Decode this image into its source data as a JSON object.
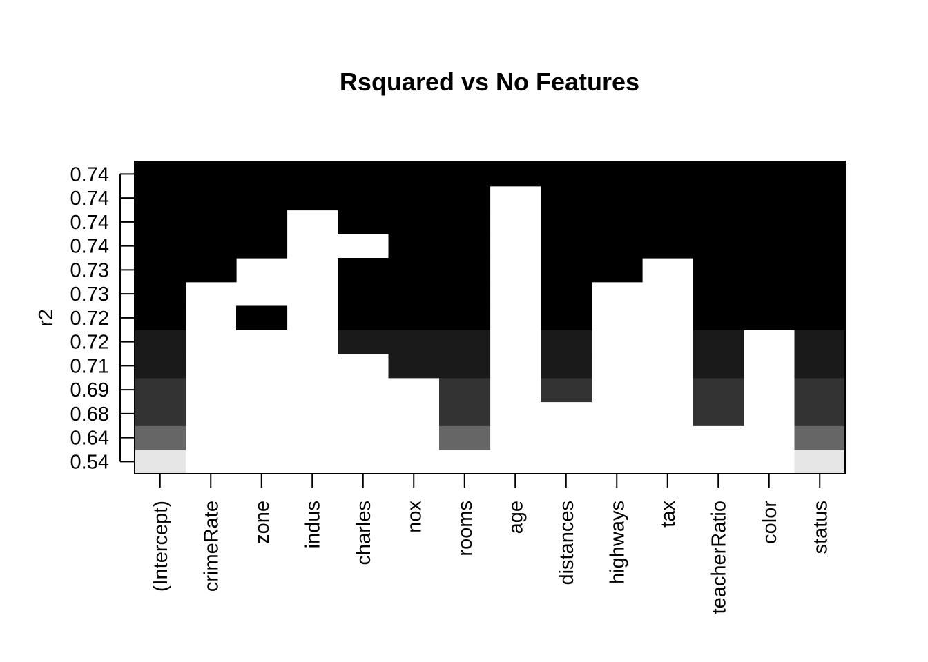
{
  "chart_data": {
    "type": "heatmap",
    "title": "Rsquared vs No Features",
    "ylabel": "r2",
    "xlabel": "",
    "features": [
      "(Intercept)",
      "crimeRate",
      "zone",
      "indus",
      "charles",
      "nox",
      "rooms",
      "age",
      "distances",
      "highways",
      "tax",
      "teacherRatio",
      "color",
      "status"
    ],
    "rows": [
      {
        "label": "0.54",
        "shade": "#E6E6E6",
        "included": [
          true,
          false,
          false,
          false,
          false,
          false,
          false,
          false,
          false,
          false,
          false,
          false,
          false,
          true
        ]
      },
      {
        "label": "0.64",
        "shade": "#666666",
        "included": [
          true,
          false,
          false,
          false,
          false,
          false,
          true,
          false,
          false,
          false,
          false,
          false,
          false,
          true
        ]
      },
      {
        "label": "0.68",
        "shade": "#333333",
        "included": [
          true,
          false,
          false,
          false,
          false,
          false,
          true,
          false,
          false,
          false,
          false,
          true,
          false,
          true
        ]
      },
      {
        "label": "0.69",
        "shade": "#333333",
        "included": [
          true,
          false,
          false,
          false,
          false,
          false,
          true,
          false,
          true,
          false,
          false,
          true,
          false,
          true
        ]
      },
      {
        "label": "0.71",
        "shade": "#1A1A1A",
        "included": [
          true,
          false,
          false,
          false,
          false,
          true,
          true,
          false,
          true,
          false,
          false,
          true,
          false,
          true
        ]
      },
      {
        "label": "0.72",
        "shade": "#1A1A1A",
        "included": [
          true,
          false,
          false,
          false,
          true,
          true,
          true,
          false,
          true,
          false,
          false,
          true,
          false,
          true
        ]
      },
      {
        "label": "0.72",
        "shade": "#000000",
        "included": [
          true,
          false,
          true,
          false,
          true,
          true,
          true,
          false,
          true,
          false,
          false,
          true,
          true,
          true
        ]
      },
      {
        "label": "0.73",
        "shade": "#000000",
        "included": [
          true,
          false,
          false,
          false,
          true,
          true,
          true,
          false,
          true,
          false,
          false,
          true,
          true,
          true
        ]
      },
      {
        "label": "0.73",
        "shade": "#000000",
        "included": [
          true,
          true,
          false,
          false,
          true,
          true,
          true,
          false,
          true,
          true,
          false,
          true,
          true,
          true
        ]
      },
      {
        "label": "0.74",
        "shade": "#000000",
        "included": [
          true,
          true,
          true,
          false,
          false,
          true,
          true,
          false,
          true,
          true,
          true,
          true,
          true,
          true
        ]
      },
      {
        "label": "0.74",
        "shade": "#000000",
        "included": [
          true,
          true,
          true,
          false,
          true,
          true,
          true,
          false,
          true,
          true,
          true,
          true,
          true,
          true
        ]
      },
      {
        "label": "0.74",
        "shade": "#000000",
        "included": [
          true,
          true,
          true,
          true,
          true,
          true,
          true,
          false,
          true,
          true,
          true,
          true,
          true,
          true
        ]
      },
      {
        "label": "0.74",
        "shade": "#000000",
        "included": [
          true,
          true,
          true,
          true,
          true,
          true,
          true,
          true,
          true,
          true,
          true,
          true,
          true,
          true
        ]
      }
    ]
  }
}
